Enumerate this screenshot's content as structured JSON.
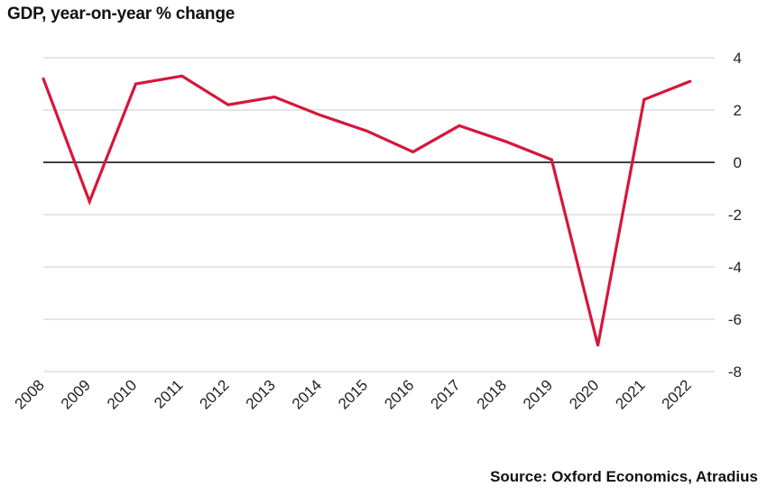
{
  "chart_data": {
    "type": "line",
    "title": "GDP, year-on-year % change",
    "source": "Source: Oxford Economics, Atradius",
    "x": [
      "2008",
      "2009",
      "2010",
      "2011",
      "2012",
      "2013",
      "2014",
      "2015",
      "2016",
      "2017",
      "2018",
      "2019",
      "2020",
      "2021",
      "2022"
    ],
    "series": [
      {
        "values": [
          3.2,
          -1.5,
          3.0,
          3.3,
          2.2,
          2.5,
          1.8,
          1.2,
          0.4,
          1.4,
          0.8,
          0.1,
          -7.0,
          2.4,
          3.1
        ]
      }
    ],
    "y_ticks": [
      4,
      2,
      0,
      -2,
      -4,
      -6,
      -8
    ],
    "ylim": [
      -8,
      4
    ],
    "line_color": "#d7163a",
    "zero_line_color": "#000000",
    "grid": true,
    "grid_color": "#cccccc",
    "y_axis_side": "right"
  }
}
